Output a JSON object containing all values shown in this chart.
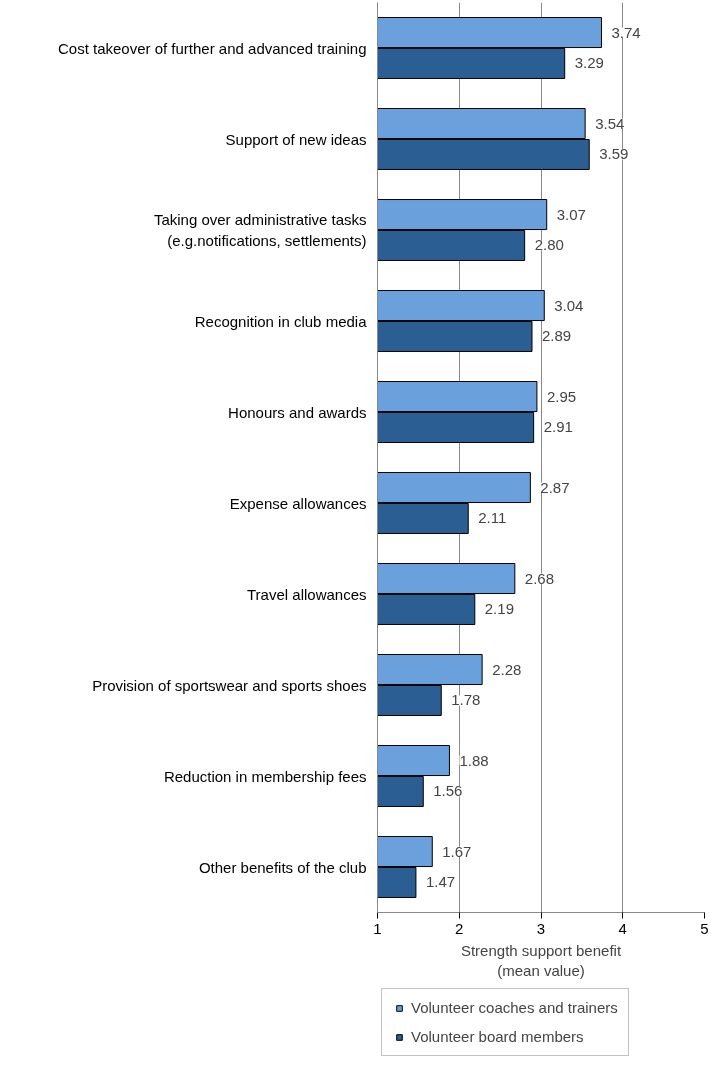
{
  "chart_data": {
    "type": "bar",
    "orientation": "horizontal",
    "xlabel": "Strength support benefit\n(mean value)",
    "categories": [
      "Cost takeover of further and advanced training",
      "Support of new ideas",
      "Taking over administrative tasks\n(e.g.notifications, settlements)",
      "Recognition in club media",
      "Honours and awards",
      "Expense allowances",
      "Travel allowances",
      "Provision of sportswear and sports shoes",
      "Reduction in membership fees",
      "Other benefits of the club"
    ],
    "series": [
      {
        "name": "Volunteer coaches and trainers",
        "color": "#6aa1dd",
        "values": [
          3.74,
          3.54,
          3.07,
          3.04,
          2.95,
          2.87,
          2.68,
          2.28,
          1.88,
          1.67
        ],
        "value_labels": [
          "3.74",
          "3.54",
          "3.07",
          "3.04",
          "2.95",
          "2.87",
          "2.68",
          "2.28",
          "1.88",
          "1.67"
        ]
      },
      {
        "name": "Volunteer board members",
        "color": "#2b5f93",
        "values": [
          3.29,
          3.59,
          2.8,
          2.89,
          2.91,
          2.11,
          2.19,
          1.78,
          1.56,
          1.47
        ],
        "value_labels": [
          "3.29",
          "3.59",
          "2.80",
          "2.89",
          "2.91",
          "2.11",
          "2.19",
          "1.78",
          "1.56",
          "1.47"
        ]
      }
    ],
    "xlim": [
      1,
      5
    ],
    "xticks": [
      1,
      2,
      3,
      4,
      5
    ],
    "grid": "x",
    "data_labels": true,
    "legend": "bottom left"
  }
}
